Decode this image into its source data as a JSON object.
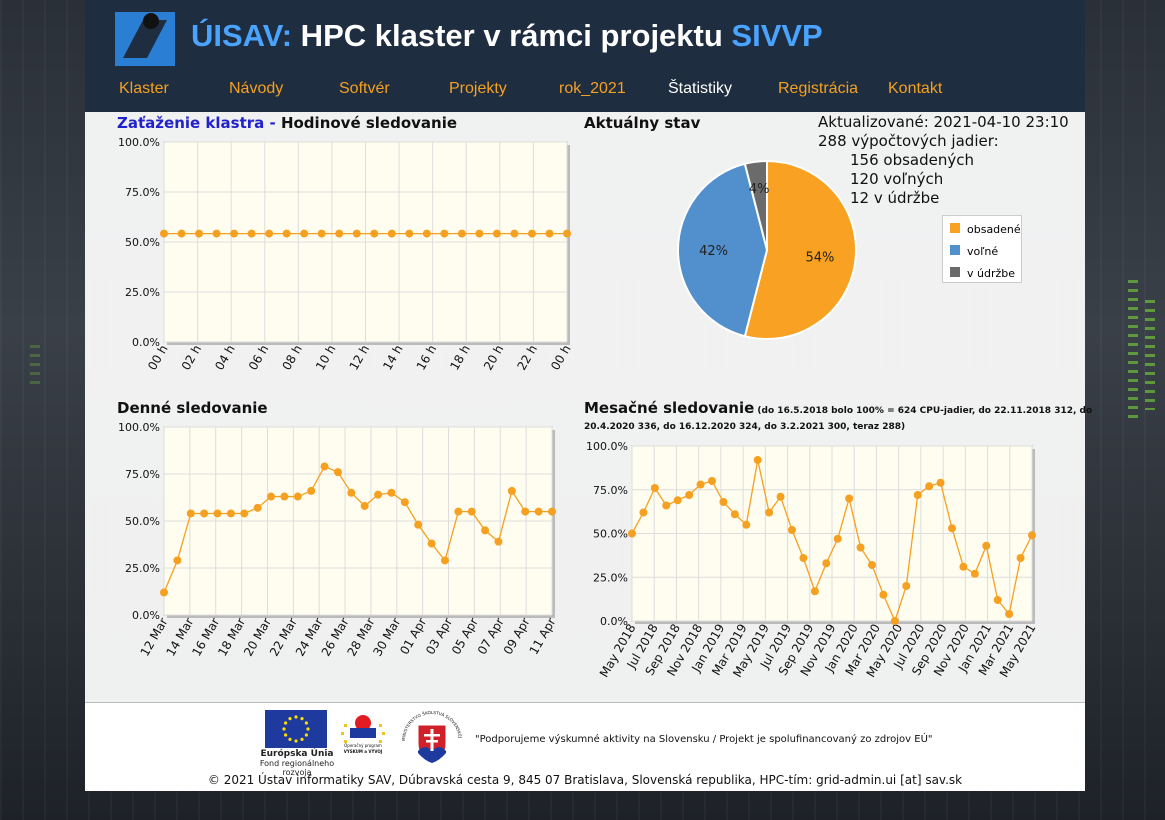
{
  "header": {
    "title_prefix": "ÚISAV:",
    "title_main": " HPC klaster v rámci projektu ",
    "title_suffix": "SIVVP",
    "nav": [
      {
        "label": "Klaster",
        "active": false
      },
      {
        "label": "Návody",
        "active": false
      },
      {
        "label": "Softvér",
        "active": false
      },
      {
        "label": "Projekty",
        "active": false
      },
      {
        "label": "rok_2021",
        "active": false
      },
      {
        "label": "Štatistiky",
        "active": true
      },
      {
        "label": "Registrácia",
        "active": false
      },
      {
        "label": "Kontakt",
        "active": false
      }
    ]
  },
  "sections": {
    "hourly_title_a": "Zaťaženie klastra",
    "hourly_title_sep": " - ",
    "hourly_title_b": "Hodinové sledovanie",
    "status_title": "Aktuálny stav",
    "daily_title": "Denné sledovanie",
    "monthly_title": "Mesačné sledovanie",
    "monthly_note_1": " (do 16.5.2018 bolo 100% = 624 CPU-jadier, do 22.11.2018 312, do",
    "monthly_note_2": "20.4.2020 336, do 16.12.2020 324, do 3.2.2021 300, teraz 288)"
  },
  "status": {
    "updated": "Aktualizované: 2021-04-10 23:10",
    "cores": "288 výpočtových jadier:",
    "occupied": "156 obsadených",
    "free": "120 voľných",
    "maintenance": "12 v údržbe"
  },
  "colors": {
    "line": "#f5a020",
    "plot_bg": "#fffdf0",
    "occupied": "#f9a123",
    "free": "#5190cc",
    "maintenance": "#6b6b6b"
  },
  "chart_data": [
    {
      "type": "line",
      "title": "Hodinové sledovanie",
      "y_ticks": [
        "100.0%",
        "75.0%",
        "50.0%",
        "25.0%",
        "0.0%"
      ],
      "x_ticks": [
        "00 h",
        "02 h",
        "04 h",
        "06 h",
        "08 h",
        "10 h",
        "12 h",
        "14 h",
        "16 h",
        "18 h",
        "20 h",
        "22 h",
        "00 h"
      ],
      "ylim": [
        0,
        100
      ],
      "values": [
        54.2,
        54.2,
        54.2,
        54.2,
        54.2,
        54.2,
        54.2,
        54.2,
        54.2,
        54.2,
        54.2,
        54.2,
        54.2,
        54.2,
        54.2,
        54.2,
        54.2,
        54.2,
        54.2,
        54.2,
        54.2,
        54.2,
        54.2,
        54.2
      ]
    },
    {
      "type": "pie",
      "title": "Aktuálny stav",
      "slices": [
        {
          "label": "obsadené",
          "value": 54,
          "text": "54%",
          "color": "#f9a123"
        },
        {
          "label": "voľné",
          "value": 42,
          "text": "42%",
          "color": "#5190cc"
        },
        {
          "label": "v údržbe",
          "value": 4,
          "text": "4%",
          "color": "#6b6b6b"
        }
      ],
      "legend": "right"
    },
    {
      "type": "line",
      "title": "Denné sledovanie",
      "y_ticks": [
        "100.0%",
        "75.0%",
        "50.0%",
        "25.0%",
        "0.0%"
      ],
      "x_ticks": [
        "12 Mar",
        "14 Mar",
        "16 Mar",
        "18 Mar",
        "20 Mar",
        "22 Mar",
        "24 Mar",
        "26 Mar",
        "28 Mar",
        "30 Mar",
        "01 Apr",
        "03 Apr",
        "05 Apr",
        "07 Apr",
        "09 Apr",
        "11 Apr"
      ],
      "ylim": [
        0,
        100
      ],
      "values": [
        12,
        29,
        54,
        54,
        54,
        54,
        54,
        57,
        63,
        63,
        63,
        66,
        79,
        76,
        65,
        58,
        64,
        65,
        60,
        48,
        38,
        29,
        55,
        55,
        45,
        39,
        66,
        55,
        55,
        55
      ]
    },
    {
      "type": "line",
      "title": "Mesačné sledovanie",
      "y_ticks": [
        "100.0%",
        "75.0%",
        "50.0%",
        "25.0%",
        "0.0%"
      ],
      "x_ticks": [
        "May 2018",
        "Jul 2018",
        "Sep 2018",
        "Nov 2018",
        "Jan 2019",
        "Mar 2019",
        "May 2019",
        "Jul 2019",
        "Sep 2019",
        "Nov 2019",
        "Jan 2020",
        "Mar 2020",
        "May 2020",
        "Jul 2020",
        "Sep 2020",
        "Nov 2020",
        "Jan 2021",
        "Mar 2021",
        "May 2021"
      ],
      "ylim": [
        0,
        100
      ],
      "values": [
        50,
        62,
        76,
        66,
        69,
        72,
        78,
        80,
        68,
        61,
        55,
        92,
        62,
        71,
        52,
        36,
        17,
        33,
        47,
        70,
        42,
        32,
        15,
        0,
        20,
        72,
        77,
        79,
        53,
        31,
        27,
        43,
        12,
        4,
        36,
        49
      ]
    }
  ],
  "footer": {
    "eu_title": "Európska Únia",
    "eu_fund": "Fond regionálneho rozvoja",
    "opvv_1": "Operačný program",
    "opvv_2": "VÝSKUM a VÝVOJ",
    "ministry": "MINISTERSTVO ŠKOLSTVA SLOVENSKEJ REPUBLIKY",
    "support": "\"Podporujeme výskumné aktivity na Slovensku / Projekt je spolufinancovaný zo zdrojov EÚ\"",
    "copyright": "© 2021 Ústav informatiky SAV, Dúbravská cesta 9, 845 07 Bratislava, Slovenská republika, HPC-tím: grid-admin.ui [at] sav.sk"
  }
}
